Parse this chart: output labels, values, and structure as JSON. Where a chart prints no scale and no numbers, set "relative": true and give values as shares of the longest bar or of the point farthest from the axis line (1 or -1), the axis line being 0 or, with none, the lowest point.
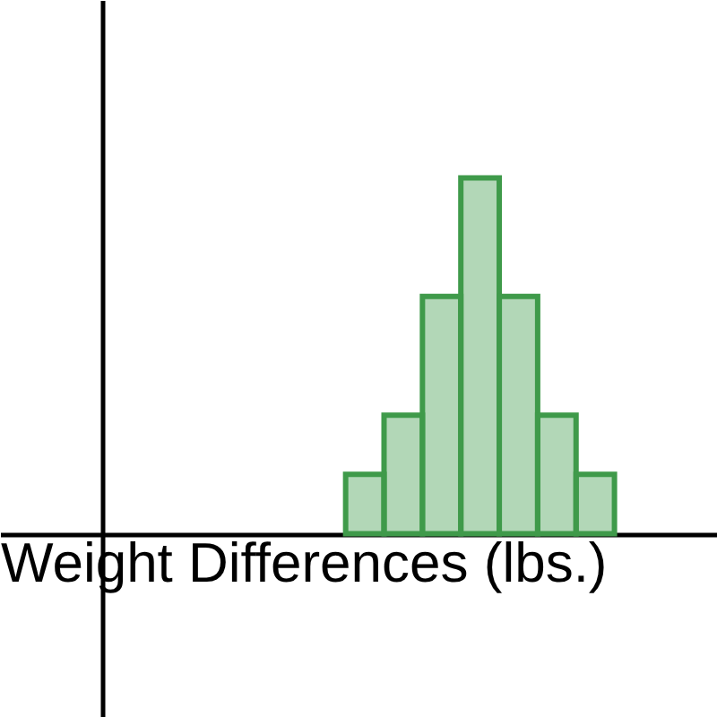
{
  "chart_data": {
    "type": "bar",
    "xlabel": "Weight Differences (lbs.)",
    "relative": true,
    "categories": [
      null,
      null,
      null,
      null,
      null,
      null,
      null
    ],
    "values": [
      0.1667,
      0.3333,
      0.6667,
      1,
      0.6667,
      0.3333,
      0.1667
    ],
    "color": "#3f9a4a",
    "grid": false
  }
}
